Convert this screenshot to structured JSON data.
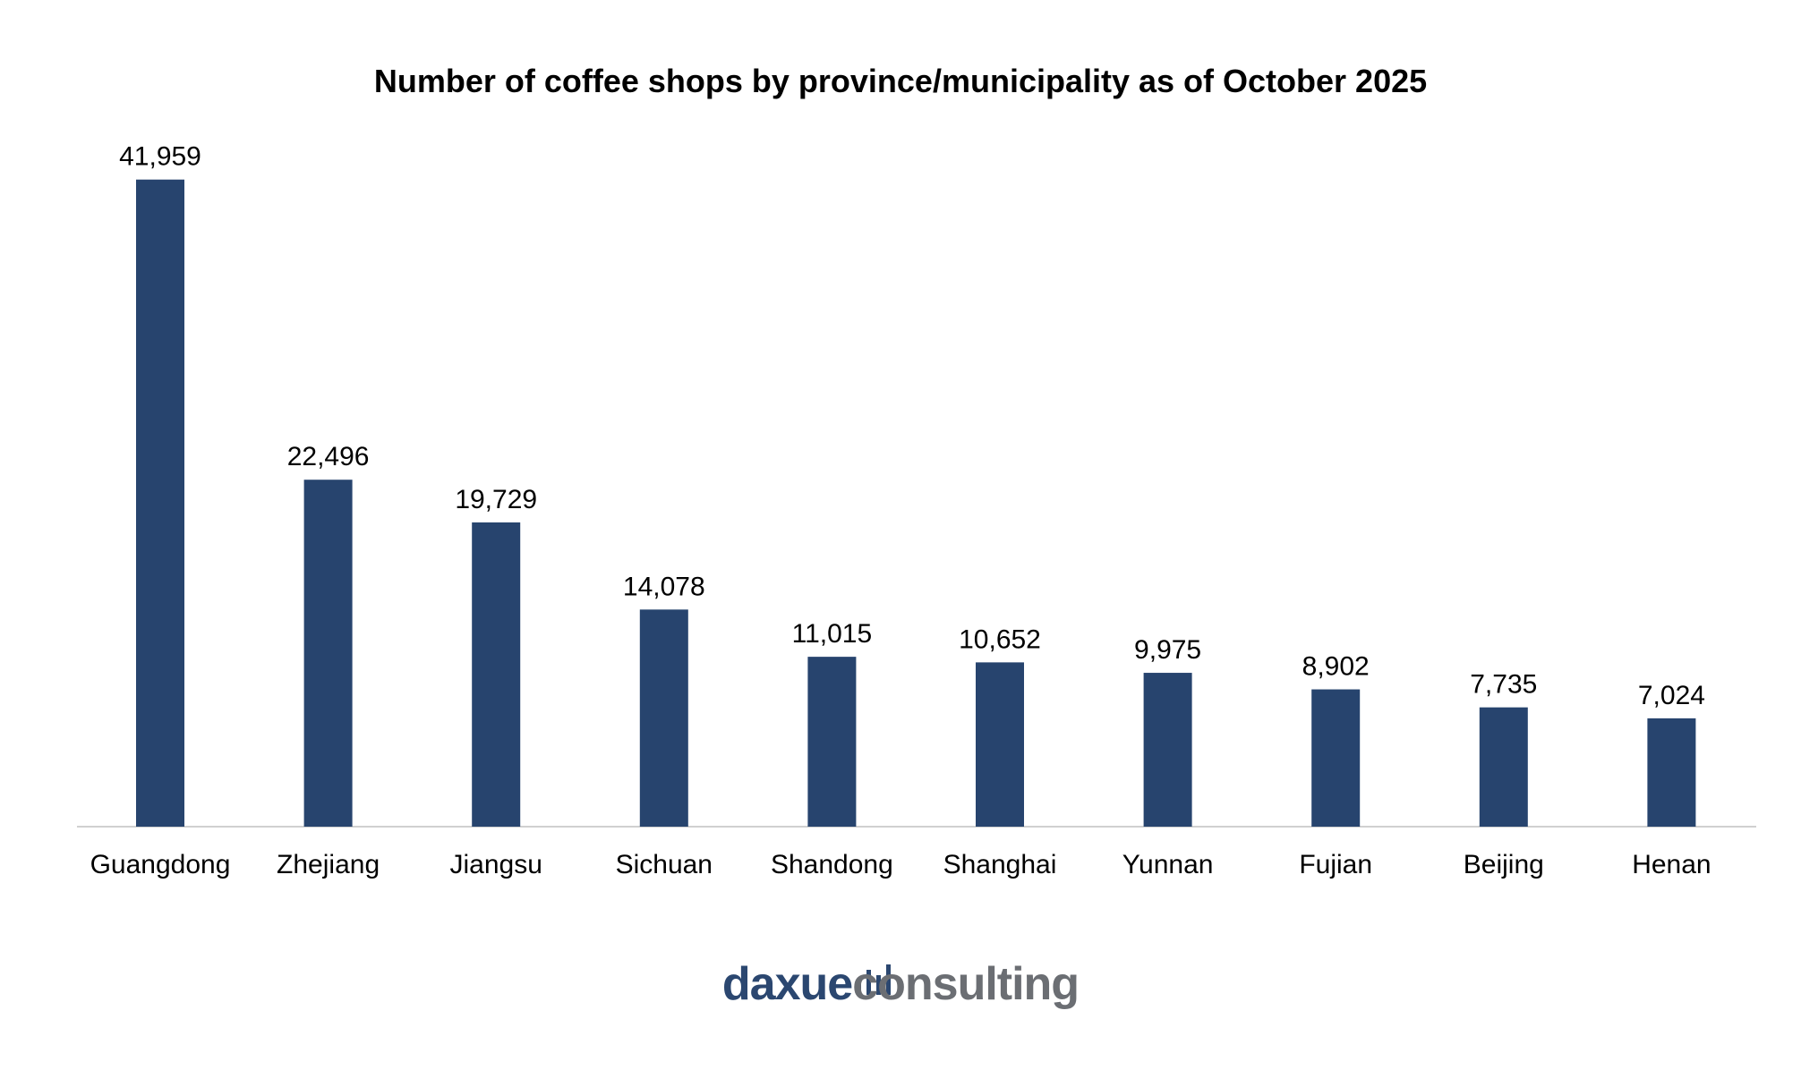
{
  "chart_data": {
    "type": "bar",
    "title": "Number of coffee shops by province/municipality as of October 2025",
    "categories": [
      "Guangdong",
      "Zhejiang",
      "Jiangsu",
      "Sichuan",
      "Shandong",
      "Shanghai",
      "Yunnan",
      "Fujian",
      "Beijing",
      "Henan"
    ],
    "values": [
      41959,
      22496,
      19729,
      14078,
      11015,
      10652,
      9975,
      8902,
      7735,
      7024
    ],
    "data_labels": [
      "41,959",
      "22,496",
      "19,729",
      "14,078",
      "11,015",
      "10,652",
      "9,975",
      "8,902",
      "7,735",
      "7,024"
    ],
    "xlabel": "",
    "ylabel": "",
    "ylim": [
      0,
      42000
    ],
    "grid": false,
    "legend": "none",
    "bar_color": "#27446e",
    "axis_color": "#d0d0d0"
  },
  "logo": {
    "part1": "daxue",
    "part2": "consulting",
    "colors": {
      "part1": "#2b4770",
      "part2": "#6b6e73"
    },
    "icon": "bar-chart-icon"
  }
}
